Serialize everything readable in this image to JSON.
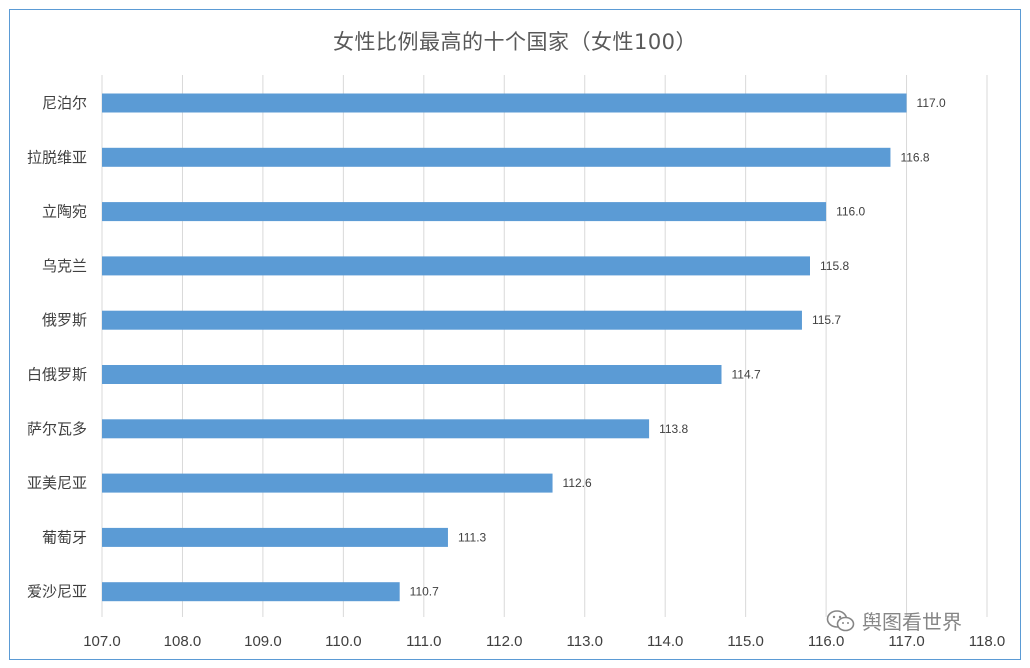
{
  "chart_data": {
    "type": "bar",
    "orientation": "horizontal",
    "title": "女性比例最高的十个国家（女性100）",
    "categories": [
      "尼泊尔",
      "拉脱维亚",
      "立陶宛",
      "乌克兰",
      "俄罗斯",
      "白俄罗斯",
      "萨尔瓦多",
      "亚美尼亚",
      "葡萄牙",
      "爱沙尼亚"
    ],
    "values": [
      117.0,
      116.8,
      116.0,
      115.8,
      115.7,
      114.7,
      113.8,
      112.6,
      111.3,
      110.7
    ],
    "data_labels": [
      "117.0",
      "116.8",
      "116.0",
      "115.8",
      "115.7",
      "114.7",
      "113.8",
      "112.6",
      "111.3",
      "110.7"
    ],
    "xlim": [
      107.0,
      118.0
    ],
    "xticks": [
      "107.0",
      "108.0",
      "109.0",
      "110.0",
      "111.0",
      "112.0",
      "113.0",
      "114.0",
      "115.0",
      "116.0",
      "117.0",
      "118.0"
    ],
    "xlabel": "",
    "ylabel": "",
    "grid": "vertical",
    "bar_color": "#5b9bd5",
    "grid_color": "#d9d9d9"
  },
  "watermark": {
    "text": "舆图看世界",
    "icon": "wechat-icon"
  }
}
